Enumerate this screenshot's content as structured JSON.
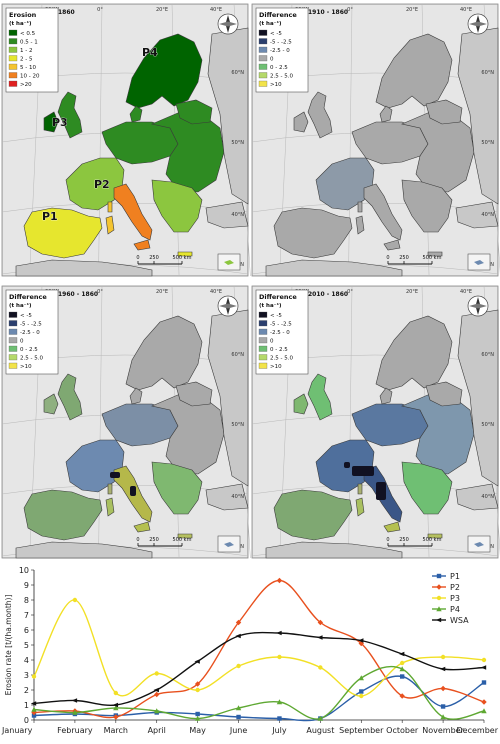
{
  "maps": [
    {
      "id": "m1860",
      "year_tag": "1860",
      "legend_title": "Erosion",
      "legend_unit": "(t ha⁻¹)",
      "legend": [
        {
          "label": "< 0.5",
          "color": "#006400"
        },
        {
          "label": "0.5 - 1",
          "color": "#2e8b22"
        },
        {
          "label": "1 - 2",
          "color": "#8cc63f"
        },
        {
          "label": "2 - 5",
          "color": "#e6e62e"
        },
        {
          "label": "5 - 10",
          "color": "#f4c430"
        },
        {
          "label": "10 - 20",
          "color": "#f08020"
        },
        {
          "label": ">20",
          "color": "#e02020"
        }
      ],
      "points": [
        {
          "label": "P1"
        },
        {
          "label": "P2"
        },
        {
          "label": "P3"
        },
        {
          "label": "P4"
        }
      ],
      "lat_labels": [
        "60°N",
        "50°N",
        "40°N",
        "30°N"
      ],
      "lon_labels": [
        "20°W",
        "0°",
        "20°E",
        "40°E"
      ],
      "scale": [
        "0",
        "250",
        "500 km"
      ]
    },
    {
      "id": "m1910",
      "year_tag": "1910 - 1860",
      "legend_title": "Difference",
      "legend_unit": "(t ha⁻¹)",
      "legend": [
        {
          "label": "< -5",
          "color": "#111122"
        },
        {
          "label": "-5 - -2.5",
          "color": "#2b3f6e"
        },
        {
          "label": "-2.5 - 0",
          "color": "#6d8ab0"
        },
        {
          "label": "0",
          "color": "#a9a9a9"
        },
        {
          "label": "0 - 2.5",
          "color": "#6fbf73"
        },
        {
          "label": "2.5 - 5.0",
          "color": "#b5d96a"
        },
        {
          "label": ">10",
          "color": "#f2e34a"
        }
      ],
      "points": [],
      "lat_labels": [
        "60°N",
        "50°N",
        "40°N",
        "30°N"
      ],
      "lon_labels": [
        "20°W",
        "0°",
        "20°E",
        "40°E"
      ],
      "scale": [
        "0",
        "250",
        "500 km"
      ]
    },
    {
      "id": "m1960",
      "year_tag": "1960 - 1860",
      "legend_title": "Difference",
      "legend_unit": "(t ha⁻¹)",
      "legend": [
        {
          "label": "< -5",
          "color": "#111122"
        },
        {
          "label": "-5 - -2.5",
          "color": "#2b3f6e"
        },
        {
          "label": "-2.5 - 0",
          "color": "#6d8ab0"
        },
        {
          "label": "0",
          "color": "#a9a9a9"
        },
        {
          "label": "0 - 2.5",
          "color": "#6fbf73"
        },
        {
          "label": "2.5 - 5.0",
          "color": "#b5d96a"
        },
        {
          "label": ">10",
          "color": "#f2e34a"
        }
      ],
      "points": [],
      "lat_labels": [
        "60°N",
        "50°N",
        "40°N",
        "30°N"
      ],
      "lon_labels": [
        "20°W",
        "0°",
        "20°E",
        "40°E"
      ],
      "scale": [
        "0",
        "250",
        "500 km"
      ]
    },
    {
      "id": "m2010",
      "year_tag": "2010 - 1860",
      "legend_title": "Difference",
      "legend_unit": "(t ha⁻¹)",
      "legend": [
        {
          "label": "< -5",
          "color": "#111122"
        },
        {
          "label": "-5 - -2.5",
          "color": "#2b3f6e"
        },
        {
          "label": "-2.5 - 0",
          "color": "#6d8ab0"
        },
        {
          "label": "0",
          "color": "#a9a9a9"
        },
        {
          "label": "0 - 2.5",
          "color": "#6fbf73"
        },
        {
          "label": "2.5 - 5.0",
          "color": "#b5d96a"
        },
        {
          "label": ">10",
          "color": "#f2e34a"
        }
      ],
      "points": [],
      "lat_labels": [
        "60°N",
        "50°N",
        "40°N",
        "30°N"
      ],
      "lon_labels": [
        "20°W",
        "0°",
        "20°E",
        "40°E"
      ],
      "scale": [
        "0",
        "250",
        "500 km"
      ]
    }
  ],
  "chart_data": {
    "type": "line",
    "categories": [
      "January",
      "February",
      "March",
      "April",
      "May",
      "June",
      "July",
      "August",
      "September",
      "October",
      "November",
      "December"
    ],
    "ylabel": "Erosion rate [t/(ha.month)]",
    "ylim": [
      0,
      10
    ],
    "yticks": [
      "0",
      "1",
      "2",
      "3",
      "4",
      "5",
      "6",
      "7",
      "8",
      "9",
      "10"
    ],
    "legend_position": "top-right",
    "grid": false,
    "series": [
      {
        "name": "P1",
        "color": "#2b5fa8",
        "marker": "square",
        "values": [
          0.3,
          0.4,
          0.3,
          0.5,
          0.4,
          0.2,
          0.1,
          0.1,
          1.9,
          2.9,
          0.9,
          2.5
        ]
      },
      {
        "name": "P2",
        "color": "#e8501e",
        "marker": "diamond",
        "values": [
          0.5,
          0.6,
          0.2,
          1.7,
          2.4,
          6.5,
          9.3,
          6.5,
          5.1,
          1.6,
          2.1,
          1.2
        ]
      },
      {
        "name": "P3",
        "color": "#f2e026",
        "marker": "circle",
        "values": [
          2.9,
          8.0,
          1.8,
          3.1,
          2.0,
          3.6,
          4.2,
          3.5,
          1.6,
          3.8,
          4.2,
          4.0
        ]
      },
      {
        "name": "P4",
        "color": "#5ea832",
        "marker": "triangle",
        "values": [
          0.7,
          0.5,
          0.8,
          0.6,
          0.1,
          0.8,
          1.2,
          0.1,
          2.8,
          3.4,
          0.2,
          0.6
        ]
      },
      {
        "name": "WSA",
        "color": "#111111",
        "marker": "arrow",
        "values": [
          1.1,
          1.3,
          1.0,
          2.0,
          3.9,
          5.6,
          5.8,
          5.5,
          5.3,
          4.4,
          3.4,
          3.5
        ]
      }
    ]
  }
}
